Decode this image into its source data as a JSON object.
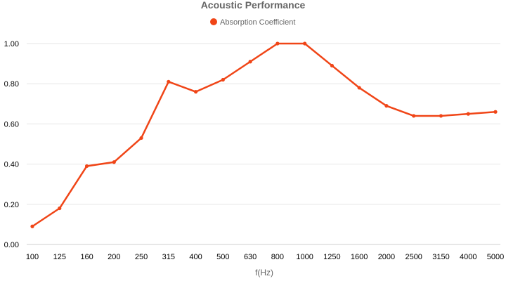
{
  "chart_data": {
    "type": "line",
    "title": "Acoustic Performance",
    "xlabel": "f(Hz)",
    "ylabel": "",
    "categories": [
      "100",
      "125",
      "160",
      "200",
      "250",
      "315",
      "400",
      "500",
      "630",
      "800",
      "1000",
      "1250",
      "1600",
      "2000",
      "2500",
      "3150",
      "4000",
      "5000"
    ],
    "series": [
      {
        "name": "Absorption Coefficient",
        "values": [
          0.09,
          0.18,
          0.39,
          0.41,
          0.53,
          0.81,
          0.76,
          0.82,
          0.91,
          1.0,
          1.0,
          0.89,
          0.78,
          0.69,
          0.64,
          0.64,
          0.65,
          0.66
        ]
      }
    ],
    "yticks": [
      "0.00",
      "0.20",
      "0.40",
      "0.60",
      "0.80",
      "1.00"
    ],
    "ylim": [
      0,
      1
    ],
    "grid": true,
    "legend_position": "top",
    "colors": {
      "series": "#f04517",
      "grid": "#e6e6e6",
      "title": "#666666"
    }
  }
}
